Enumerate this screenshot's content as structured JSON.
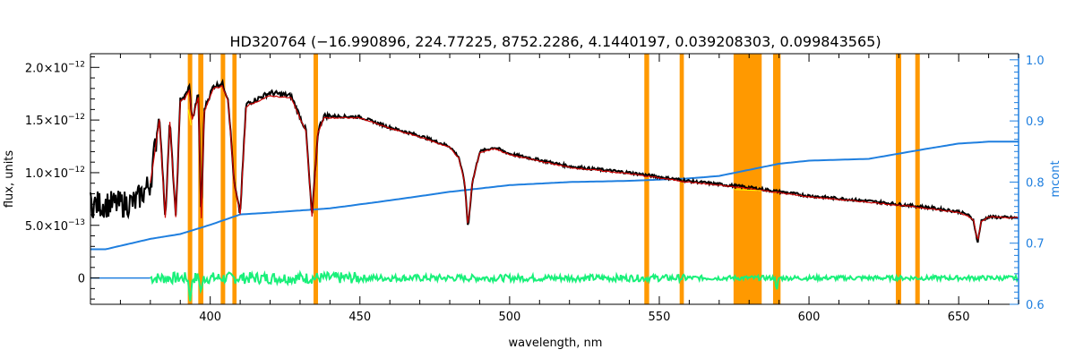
{
  "chart_data": {
    "type": "line",
    "title": "HD320764    (−16.990896, 224.77225, 8752.2286, 4.1440197, 0.039208303, 0.099843565)",
    "xlabel": "wavelength, nm",
    "ylabel": "flux, units",
    "y2label": "mcont",
    "xlim": [
      360,
      670
    ],
    "ylim": [
      -2.5e-13,
      2.13e-12
    ],
    "y2lim": [
      0.6,
      1.01
    ],
    "x_ticks": [
      "400",
      "450",
      "500",
      "550",
      "600",
      "650"
    ],
    "x_tick_values": [
      400,
      450,
      500,
      550,
      600,
      650
    ],
    "y_ticks": [
      {
        "value": 0,
        "mantissa": "0",
        "exp": ""
      },
      {
        "value": 5e-13,
        "mantissa": "5.0×10",
        "exp": "−13"
      },
      {
        "value": 1e-12,
        "mantissa": "1.0×10",
        "exp": "−12"
      },
      {
        "value": 1.5e-12,
        "mantissa": "1.5×10",
        "exp": "−12"
      },
      {
        "value": 2e-12,
        "mantissa": "2.0×10",
        "exp": "−12"
      }
    ],
    "y2_ticks": [
      "0.6",
      "0.7",
      "0.8",
      "0.9",
      "1.0"
    ],
    "y2_tick_values": [
      0.6,
      0.7,
      0.8,
      0.9,
      1.0
    ],
    "colors": {
      "observed": "#000000",
      "model": "#cc0000",
      "continuum": "#1f7fdf",
      "residual": "#19f07a",
      "mask": "#ff9900",
      "right_axis": "#1f7fdf",
      "highlight": "#ffff00"
    },
    "mask_bands": [
      [
        392.5,
        394.0
      ],
      [
        396.0,
        397.7
      ],
      [
        403.5,
        405.0
      ],
      [
        407.4,
        408.8
      ],
      [
        434.5,
        436.0
      ],
      [
        545.0,
        546.6
      ],
      [
        556.8,
        558.2
      ],
      [
        574.8,
        584.2
      ],
      [
        588.0,
        590.5
      ],
      [
        629.0,
        630.8
      ],
      [
        635.5,
        637.0
      ]
    ],
    "series": [
      {
        "key": "observed",
        "x": [
          360,
          370,
          375,
          380,
          383,
          385,
          386.5,
          388.5,
          390,
          391.5,
          393,
          394,
          396,
          397,
          398,
          401,
          404,
          406,
          408,
          410,
          412,
          420,
          427,
          432,
          434,
          436,
          438,
          450,
          460,
          470,
          480,
          483,
          485,
          486.1,
          487.5,
          490,
          495,
          500,
          520,
          540,
          560,
          580,
          600,
          620,
          640,
          650,
          653,
          655,
          656.3,
          657.5,
          660,
          670
        ],
        "y": [
          7e-13,
          7e-13,
          7.2e-13,
          9e-13,
          1.55e-12,
          5.6e-13,
          1.5e-12,
          5.7e-13,
          1.7e-12,
          1.72e-12,
          1.82e-12,
          1.5e-12,
          1.75e-12,
          5.6e-13,
          1.6e-12,
          1.82e-12,
          1.85e-12,
          1.7e-12,
          9e-13,
          6e-13,
          1.65e-12,
          1.76e-12,
          1.73e-12,
          1.4e-12,
          5.7e-13,
          1.4e-12,
          1.54e-12,
          1.53e-12,
          1.43e-12,
          1.35e-12,
          1.25e-12,
          1.15e-12,
          9e-13,
          4.7e-13,
          9e-13,
          1.2e-12,
          1.24e-12,
          1.18e-12,
          1.06e-12,
          1e-12,
          9.2e-13,
          8.6e-13,
          7.8e-13,
          7.3e-13,
          6.7e-13,
          6.3e-13,
          6e-13,
          5.5e-13,
          3.3e-13,
          5.4e-13,
          5.8e-13,
          5.7e-13
        ]
      },
      {
        "key": "model",
        "x": [
          380,
          383,
          385,
          386.5,
          388.5,
          390,
          391.5,
          393,
          394,
          396,
          397,
          398,
          401,
          404,
          406,
          408,
          410,
          412,
          420,
          427,
          432,
          434,
          436,
          438,
          450,
          460,
          470,
          480,
          483,
          485,
          486.1,
          487.5,
          490,
          495,
          500,
          520,
          540,
          560,
          580,
          600,
          620,
          640,
          650,
          653,
          655,
          656.3,
          657.5,
          660,
          670
        ],
        "y": [
          9e-13,
          1.5e-12,
          5.7e-13,
          1.48e-12,
          5.8e-13,
          1.68e-12,
          1.7e-12,
          1.78e-12,
          1.5e-12,
          1.72e-12,
          5.7e-13,
          1.58e-12,
          1.8e-12,
          1.82e-12,
          1.68e-12,
          9e-13,
          6.1e-13,
          1.63e-12,
          1.73e-12,
          1.71e-12,
          1.39e-12,
          5.8e-13,
          1.38e-12,
          1.52e-12,
          1.52e-12,
          1.42e-12,
          1.34e-12,
          1.24e-12,
          1.14e-12,
          9e-13,
          4.8e-13,
          9e-13,
          1.19e-12,
          1.23e-12,
          1.17e-12,
          1.05e-12,
          9.9e-13,
          9.1e-13,
          8.5e-13,
          7.7e-13,
          7.2e-13,
          6.6e-13,
          6.2e-13,
          5.9e-13,
          5.5e-13,
          3.4e-13,
          5.4e-13,
          5.8e-13,
          5.7e-13
        ]
      },
      {
        "key": "continuum",
        "x": [
          360,
          365,
          380,
          390,
          400,
          410,
          420,
          440,
          460,
          480,
          500,
          520,
          540,
          560,
          570,
          580,
          590,
          600,
          620,
          640,
          650,
          660,
          670
        ],
        "y2": [
          0.69,
          0.69,
          0.707,
          0.715,
          0.73,
          0.747,
          0.75,
          0.757,
          0.77,
          0.784,
          0.795,
          0.8,
          0.802,
          0.806,
          0.81,
          0.82,
          0.83,
          0.835,
          0.838,
          0.855,
          0.863,
          0.866,
          0.866
        ]
      },
      {
        "key": "residual",
        "x": [
          360,
          380,
          670
        ],
        "y": [
          0,
          0,
          0
        ]
      }
    ]
  }
}
